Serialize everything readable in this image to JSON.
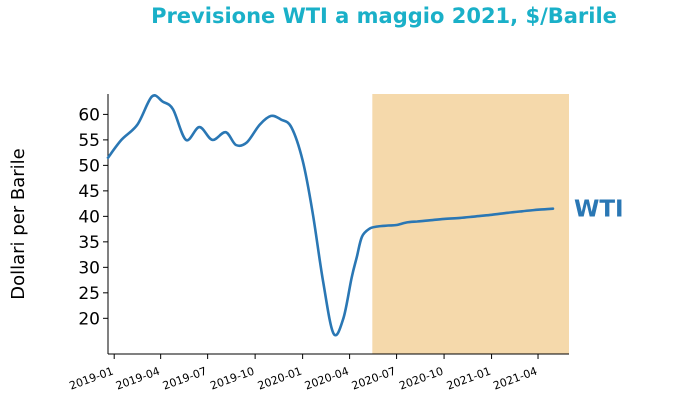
{
  "chart_data": {
    "type": "line",
    "title": "Previsione WTI a maggio 2021, $/Barile",
    "xlabel": "",
    "ylabel": "Dollari per Barile",
    "title_color": "#1ab0c8",
    "line_color": "#2a77b4",
    "forecast_color": "#f5d9ab",
    "ylim": [
      13,
      64
    ],
    "xlim": [
      "2018-12-20",
      "2021-05-31"
    ],
    "grid": false,
    "y_ticks": [
      20,
      25,
      30,
      35,
      40,
      45,
      50,
      55,
      60
    ],
    "x_ticks": [
      "2019-01",
      "2019-04",
      "2019-07",
      "2019-10",
      "2020-01",
      "2020-04",
      "2020-07",
      "2020-10",
      "2021-01",
      "2021-04"
    ],
    "forecast_region": {
      "start": "2020-05-15",
      "end": "2021-05-31"
    },
    "series": [
      {
        "name": "WTI",
        "x": [
          "2018-12-20",
          "2019-01-15",
          "2019-02-15",
          "2019-03-15",
          "2019-04-05",
          "2019-04-25",
          "2019-05-20",
          "2019-06-15",
          "2019-07-10",
          "2019-08-05",
          "2019-08-25",
          "2019-09-15",
          "2019-10-10",
          "2019-11-01",
          "2019-11-20",
          "2019-12-10",
          "2020-01-01",
          "2020-01-20",
          "2020-02-10",
          "2020-03-01",
          "2020-03-20",
          "2020-04-05",
          "2020-04-15",
          "2020-04-25",
          "2020-05-10",
          "2020-05-25",
          "2020-06-15",
          "2020-07-01",
          "2020-07-20",
          "2020-08-10",
          "2020-09-01",
          "2020-10-01",
          "2020-11-01",
          "2020-12-01",
          "2021-01-01",
          "2021-02-01",
          "2021-03-01",
          "2021-04-01",
          "2021-04-30"
        ],
        "y": [
          51.5,
          55,
          58,
          63.5,
          62.5,
          61,
          55,
          57.5,
          55,
          56.5,
          54,
          54.5,
          58,
          59.7,
          59,
          57.5,
          51,
          41,
          27,
          17,
          20,
          28,
          32,
          36,
          37.6,
          38,
          38.2,
          38.3,
          38.8,
          39,
          39.2,
          39.5,
          39.7,
          40,
          40.3,
          40.7,
          41,
          41.3,
          41.5
        ]
      }
    ]
  }
}
